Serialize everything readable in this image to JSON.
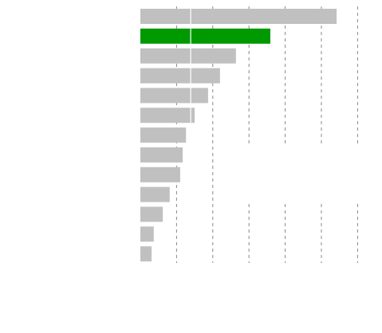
{
  "chart_data": {
    "type": "barh",
    "categories": [
      null,
      null,
      null,
      null,
      null,
      null,
      null,
      null,
      null,
      null,
      null,
      null,
      null
    ],
    "values": [
      5.42,
      3.59,
      2.64,
      2.2,
      1.87,
      1.5,
      1.26,
      1.17,
      1.1,
      0.81,
      0.62,
      0.37,
      0.31
    ],
    "colors": [
      "#c0c0c0",
      "#009900",
      "#c0c0c0",
      "#c0c0c0",
      "#c0c0c0",
      "#c0c0c0",
      "#c0c0c0",
      "#c0c0c0",
      "#c0c0c0",
      "#c0c0c0",
      "#c0c0c0",
      "#c0c0c0",
      "#c0c0c0"
    ],
    "xlim": [
      0,
      6
    ],
    "xticks": [
      1,
      2,
      3,
      4,
      5,
      6
    ],
    "grid": true,
    "reference_line": 1.39
  }
}
